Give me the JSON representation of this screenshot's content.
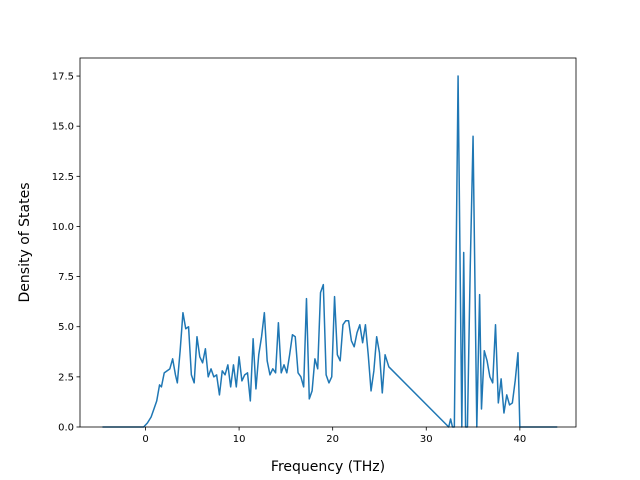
{
  "chart_data": {
    "type": "line",
    "title": "",
    "xlabel": "Frequency (THz)",
    "ylabel": "Density of States",
    "xlim": [
      -7,
      46
    ],
    "ylim": [
      0,
      18.4
    ],
    "xticks": [
      0,
      10,
      20,
      30,
      40
    ],
    "yticks": [
      0.0,
      2.5,
      5.0,
      7.5,
      10.0,
      12.5,
      15.0,
      17.5
    ],
    "ytick_labels": [
      "0.0",
      "2.5",
      "5.0",
      "7.5",
      "10.0",
      "12.5",
      "15.0",
      "17.5"
    ],
    "grid": false,
    "legend": "none",
    "color": "#1f77b4",
    "series": [
      {
        "x": [
          -4.6,
          -1,
          -0.2,
          0.2,
          0.6,
          0.9,
          1.2,
          1.5,
          1.7,
          2.0,
          2.3,
          2.6,
          2.9,
          3.2,
          3.4,
          3.7,
          4.0,
          4.3,
          4.6,
          4.9,
          5.2,
          5.5,
          5.8,
          6.1,
          6.4,
          6.7,
          7.0,
          7.3,
          7.6,
          7.9,
          8.2,
          8.5,
          8.8,
          9.1,
          9.4,
          9.7,
          10.0,
          10.3,
          10.6,
          10.9,
          11.2,
          11.5,
          11.8,
          12.1,
          12.4,
          12.7,
          13.0,
          13.3,
          13.6,
          13.9,
          14.2,
          14.5,
          14.8,
          15.1,
          15.4,
          15.7,
          16.0,
          16.3,
          16.6,
          16.9,
          17.2,
          17.5,
          17.8,
          18.1,
          18.4,
          18.7,
          19.0,
          19.3,
          19.6,
          19.9,
          20.2,
          20.5,
          20.8,
          21.1,
          21.4,
          21.7,
          22.0,
          22.3,
          22.6,
          22.9,
          23.2,
          23.5,
          23.8,
          24.1,
          24.4,
          24.7,
          25.0,
          25.3,
          25.6,
          26.0,
          32.4,
          32.6,
          32.8,
          33.0,
          33.4,
          33.8,
          34.0,
          34.2,
          34.4,
          34.7,
          35.0,
          35.4,
          35.7,
          35.9,
          36.2,
          36.5,
          36.8,
          37.1,
          37.4,
          37.7,
          38.0,
          38.3,
          38.6,
          38.9,
          39.2,
          39.5,
          39.8,
          40.0,
          40.3,
          44.0
        ],
        "values": [
          0,
          0,
          0,
          0.2,
          0.5,
          0.9,
          1.3,
          2.1,
          2.0,
          2.7,
          2.8,
          2.9,
          3.4,
          2.6,
          2.2,
          3.8,
          5.7,
          4.9,
          5.0,
          2.6,
          2.2,
          4.5,
          3.5,
          3.2,
          3.9,
          2.5,
          2.9,
          2.5,
          2.6,
          1.6,
          2.8,
          2.6,
          3.1,
          2.0,
          3.1,
          2.0,
          3.5,
          2.3,
          2.6,
          2.7,
          1.3,
          4.4,
          1.9,
          3.6,
          4.5,
          5.7,
          3.3,
          2.6,
          2.9,
          2.7,
          5.2,
          2.7,
          3.1,
          2.7,
          3.6,
          4.6,
          4.5,
          2.7,
          2.5,
          2.0,
          6.4,
          1.4,
          1.8,
          3.4,
          2.9,
          6.7,
          7.1,
          2.6,
          2.2,
          2.5,
          6.5,
          3.6,
          3.3,
          5.1,
          5.3,
          5.3,
          4.3,
          4.0,
          4.7,
          5.1,
          4.2,
          5.1,
          3.6,
          1.8,
          2.8,
          4.5,
          3.7,
          1.7,
          3.6,
          3.0,
          0,
          0.4,
          0,
          0,
          17.5,
          0,
          8.7,
          0,
          0,
          8.0,
          14.5,
          0,
          6.6,
          0.9,
          3.8,
          3.3,
          2.5,
          2.2,
          5.1,
          1.2,
          2.4,
          0.7,
          1.6,
          1.1,
          1.2,
          2.3,
          3.7,
          0,
          0,
          0
        ]
      }
    ]
  }
}
